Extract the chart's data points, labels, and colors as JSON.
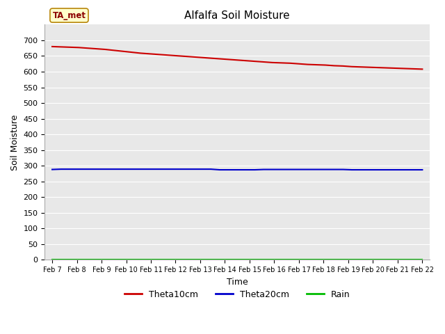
{
  "title": "Alfalfa Soil Moisture",
  "xlabel": "Time",
  "ylabel": "Soil Moisture",
  "annotation_text": "TA_met",
  "ylim": [
    0,
    750
  ],
  "yticks": [
    0,
    50,
    100,
    150,
    200,
    250,
    300,
    350,
    400,
    450,
    500,
    550,
    600,
    650,
    700
  ],
  "x_labels": [
    "Feb 7",
    "Feb 8",
    "Feb 9",
    "Feb 10",
    "Feb 11",
    "Feb 12",
    "Feb 13",
    "Feb 14",
    "Feb 15",
    "Feb 16",
    "Feb 17",
    "Feb 18",
    "Feb 19",
    "Feb 20",
    "Feb 21",
    "Feb 22"
  ],
  "theta10cm_values": [
    680,
    679,
    678,
    677,
    675,
    673,
    671,
    668,
    665,
    662,
    659,
    657,
    655,
    653,
    651,
    649,
    647,
    645,
    643,
    641,
    639,
    637,
    635,
    633,
    631,
    629,
    628,
    627,
    625,
    623,
    622,
    621,
    619,
    618,
    616,
    615,
    614,
    613,
    612,
    611,
    610,
    609,
    608
  ],
  "theta20cm_values": [
    288,
    289,
    289,
    289,
    289,
    289,
    289,
    289,
    289,
    289,
    289,
    289,
    289,
    289,
    289,
    289,
    289,
    289,
    289,
    287,
    287,
    287,
    287,
    287,
    288,
    288,
    288,
    288,
    288,
    288,
    288,
    288,
    288,
    288,
    287,
    287,
    287,
    287,
    287,
    287,
    287,
    287,
    287
  ],
  "rain_values": [
    1,
    1,
    1,
    1,
    1,
    1,
    1,
    1,
    1,
    1,
    1,
    1,
    1,
    1,
    1,
    1,
    1,
    1,
    1,
    1,
    1,
    1,
    1,
    1,
    1,
    1,
    1,
    1,
    1,
    1,
    1,
    1,
    1,
    1,
    1,
    1,
    1,
    1,
    1,
    1,
    1,
    1,
    1
  ],
  "theta10cm_color": "#cc0000",
  "theta20cm_color": "#0000cc",
  "rain_color": "#00bb00",
  "bg_color": "#e8e8e8",
  "grid_color": "white",
  "legend_labels": [
    "Theta10cm",
    "Theta20cm",
    "Rain"
  ]
}
